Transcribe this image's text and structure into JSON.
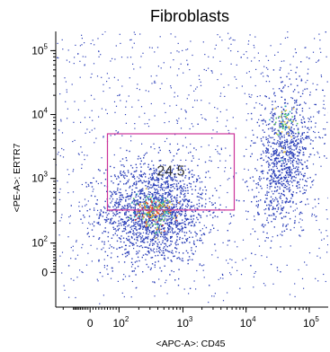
{
  "chart_data": {
    "type": "scatter",
    "title": "Fibroblasts",
    "xlabel": "<APC-A>: CD45",
    "ylabel": "<PE-A>: ERTR7",
    "x_scale": "biexponential",
    "y_scale": "biexponential",
    "xlim": [
      -300,
      200000
    ],
    "ylim": [
      -300,
      200000
    ],
    "x_ticks": [
      {
        "value": 0,
        "base": "0",
        "exp": ""
      },
      {
        "value": 100,
        "base": "10",
        "exp": "2"
      },
      {
        "value": 1000,
        "base": "10",
        "exp": "3"
      },
      {
        "value": 10000,
        "base": "10",
        "exp": "4"
      },
      {
        "value": 100000,
        "base": "10",
        "exp": "5"
      }
    ],
    "y_ticks": [
      {
        "value": 0,
        "base": "0",
        "exp": ""
      },
      {
        "value": 100,
        "base": "10",
        "exp": "2"
      },
      {
        "value": 1000,
        "base": "10",
        "exp": "3"
      },
      {
        "value": 10000,
        "base": "10",
        "exp": "4"
      },
      {
        "value": 100000,
        "base": "10",
        "exp": "5"
      }
    ],
    "gate": {
      "x_range": [
        60,
        6500
      ],
      "y_range": [
        320,
        5000
      ],
      "label": "24.5",
      "color": "#cc3399"
    },
    "populations": [
      {
        "center_x": 350,
        "center_y": 300,
        "relative_density": "high"
      },
      {
        "center_x": 40000,
        "center_y": 2000,
        "relative_density": "medium"
      }
    ],
    "colors": {
      "dots": "#2b3fb8",
      "dense_core": "#e8c23a",
      "gate": "#cc3399",
      "axes": "#000000"
    }
  }
}
